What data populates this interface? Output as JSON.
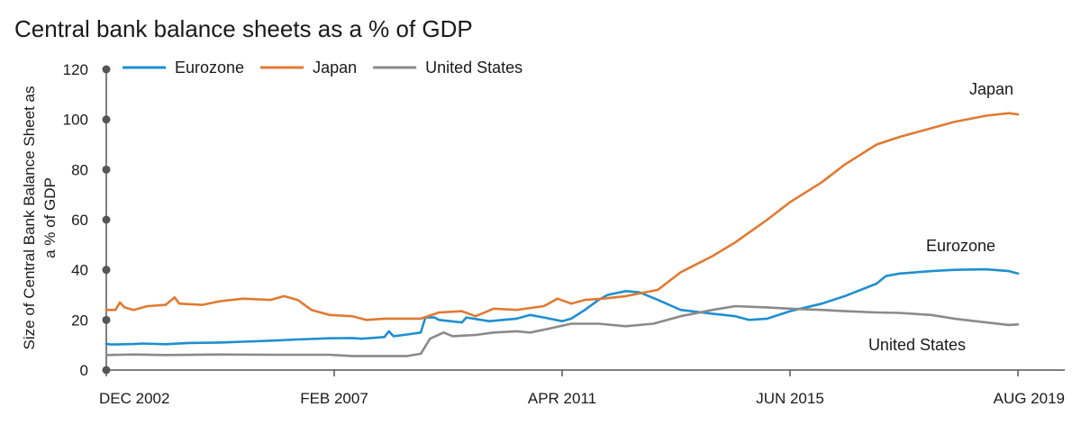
{
  "chart_data": {
    "type": "line",
    "title": "Central bank balance sheets as a % of GDP",
    "ylabel_lines": [
      "Size of Central Bank Balance Sheet as",
      "a % of GDP"
    ],
    "xlabel": "",
    "ylim": [
      0,
      120
    ],
    "yticks": [
      0,
      20,
      40,
      60,
      80,
      100,
      120
    ],
    "x_range": [
      "2002-12",
      "2019-08"
    ],
    "xticks": [
      {
        "label": "DEC 2002",
        "date": "2002-12"
      },
      {
        "label": "FEB 2007",
        "date": "2007-02"
      },
      {
        "label": "APR 2011",
        "date": "2011-04"
      },
      {
        "label": "JUN 2015",
        "date": "2015-06"
      },
      {
        "label": "AUG 2019",
        "date": "2019-08"
      }
    ],
    "grid": false,
    "legend": {
      "position": "top-left",
      "entries": [
        "Eurozone",
        "Japan",
        "United States"
      ]
    },
    "series": [
      {
        "name": "Eurozone",
        "color": "#1f8fd0",
        "end_label": "Eurozone",
        "points": [
          [
            "2002-12",
            10.5
          ],
          [
            "2003-01",
            10.2
          ],
          [
            "2003-06",
            10.4
          ],
          [
            "2003-08",
            10.6
          ],
          [
            "2004-01",
            10.3
          ],
          [
            "2004-06",
            10.8
          ],
          [
            "2005-01",
            11.0
          ],
          [
            "2005-06",
            11.3
          ],
          [
            "2006-01",
            11.8
          ],
          [
            "2006-06",
            12.2
          ],
          [
            "2007-01",
            12.7
          ],
          [
            "2007-06",
            12.8
          ],
          [
            "2007-08",
            12.5
          ],
          [
            "2008-01",
            13.2
          ],
          [
            "2008-02",
            15.5
          ],
          [
            "2008-03",
            13.5
          ],
          [
            "2008-06",
            14.2
          ],
          [
            "2008-09",
            15.0
          ],
          [
            "2008-10",
            21.0
          ],
          [
            "2008-12",
            21.0
          ],
          [
            "2009-01",
            20.0
          ],
          [
            "2009-06",
            19.0
          ],
          [
            "2009-07",
            21.0
          ],
          [
            "2009-12",
            19.5
          ],
          [
            "2010-06",
            20.5
          ],
          [
            "2010-09",
            22.0
          ],
          [
            "2010-12",
            21.0
          ],
          [
            "2011-04",
            19.5
          ],
          [
            "2011-06",
            20.5
          ],
          [
            "2011-09",
            24.0
          ],
          [
            "2011-12",
            28.0
          ],
          [
            "2012-02",
            30.0
          ],
          [
            "2012-06",
            31.5
          ],
          [
            "2012-09",
            31.0
          ],
          [
            "2013-01",
            28.0
          ],
          [
            "2013-06",
            24.0
          ],
          [
            "2014-01",
            22.5
          ],
          [
            "2014-06",
            21.5
          ],
          [
            "2014-09",
            20.0
          ],
          [
            "2015-01",
            20.5
          ],
          [
            "2015-06",
            23.5
          ],
          [
            "2016-01",
            26.5
          ],
          [
            "2016-06",
            29.5
          ],
          [
            "2017-01",
            34.5
          ],
          [
            "2017-03",
            37.5
          ],
          [
            "2017-06",
            38.5
          ],
          [
            "2018-01",
            39.5
          ],
          [
            "2018-06",
            40.0
          ],
          [
            "2019-01",
            40.2
          ],
          [
            "2019-06",
            39.5
          ],
          [
            "2019-08",
            38.5
          ]
        ]
      },
      {
        "name": "Japan",
        "color": "#e07a32",
        "end_label": "Japan",
        "points": [
          [
            "2002-12",
            24.0
          ],
          [
            "2003-02",
            24.0
          ],
          [
            "2003-03",
            27.0
          ],
          [
            "2003-04",
            25.0
          ],
          [
            "2003-06",
            24.0
          ],
          [
            "2003-09",
            25.5
          ],
          [
            "2004-01",
            26.0
          ],
          [
            "2004-03",
            29.0
          ],
          [
            "2004-04",
            26.5
          ],
          [
            "2004-09",
            26.0
          ],
          [
            "2005-01",
            27.5
          ],
          [
            "2005-06",
            28.5
          ],
          [
            "2005-12",
            28.0
          ],
          [
            "2006-03",
            29.5
          ],
          [
            "2006-06",
            28.0
          ],
          [
            "2006-09",
            24.0
          ],
          [
            "2007-01",
            22.0
          ],
          [
            "2007-06",
            21.5
          ],
          [
            "2007-09",
            20.0
          ],
          [
            "2008-01",
            20.5
          ],
          [
            "2008-06",
            20.5
          ],
          [
            "2008-09",
            20.5
          ],
          [
            "2009-01",
            23.0
          ],
          [
            "2009-06",
            23.5
          ],
          [
            "2009-09",
            21.5
          ],
          [
            "2010-01",
            24.5
          ],
          [
            "2010-06",
            24.0
          ],
          [
            "2010-12",
            25.5
          ],
          [
            "2011-03",
            28.5
          ],
          [
            "2011-06",
            26.5
          ],
          [
            "2011-09",
            28.0
          ],
          [
            "2012-01",
            28.5
          ],
          [
            "2012-06",
            29.5
          ],
          [
            "2013-01",
            32.0
          ],
          [
            "2013-06",
            39.0
          ],
          [
            "2014-01",
            45.5
          ],
          [
            "2014-06",
            51.0
          ],
          [
            "2015-01",
            60.0
          ],
          [
            "2015-06",
            67.0
          ],
          [
            "2016-01",
            75.0
          ],
          [
            "2016-06",
            82.0
          ],
          [
            "2017-01",
            90.0
          ],
          [
            "2017-06",
            93.0
          ],
          [
            "2018-01",
            96.5
          ],
          [
            "2018-06",
            99.0
          ],
          [
            "2019-01",
            101.5
          ],
          [
            "2019-06",
            102.5
          ],
          [
            "2019-08",
            102.0
          ]
        ]
      },
      {
        "name": "United States",
        "color": "#8a8a8a",
        "end_label": "United States",
        "points": [
          [
            "2002-12",
            6.0
          ],
          [
            "2003-06",
            6.2
          ],
          [
            "2004-01",
            6.0
          ],
          [
            "2005-01",
            6.2
          ],
          [
            "2006-01",
            6.1
          ],
          [
            "2007-01",
            6.1
          ],
          [
            "2007-06",
            5.6
          ],
          [
            "2008-06",
            5.6
          ],
          [
            "2008-09",
            6.5
          ],
          [
            "2008-11",
            12.5
          ],
          [
            "2009-02",
            15.0
          ],
          [
            "2009-04",
            13.5
          ],
          [
            "2009-09",
            14.0
          ],
          [
            "2010-01",
            15.0
          ],
          [
            "2010-06",
            15.5
          ],
          [
            "2010-09",
            15.0
          ],
          [
            "2011-01",
            16.5
          ],
          [
            "2011-06",
            18.5
          ],
          [
            "2011-12",
            18.5
          ],
          [
            "2012-06",
            17.5
          ],
          [
            "2012-12",
            18.5
          ],
          [
            "2013-06",
            21.5
          ],
          [
            "2014-01",
            24.0
          ],
          [
            "2014-06",
            25.5
          ],
          [
            "2015-01",
            25.0
          ],
          [
            "2015-06",
            24.5
          ],
          [
            "2016-01",
            24.0
          ],
          [
            "2016-06",
            23.5
          ],
          [
            "2017-01",
            23.0
          ],
          [
            "2017-06",
            22.8
          ],
          [
            "2018-01",
            22.0
          ],
          [
            "2018-06",
            20.5
          ],
          [
            "2019-01",
            19.0
          ],
          [
            "2019-06",
            18.0
          ],
          [
            "2019-08",
            18.2
          ]
        ]
      }
    ]
  }
}
